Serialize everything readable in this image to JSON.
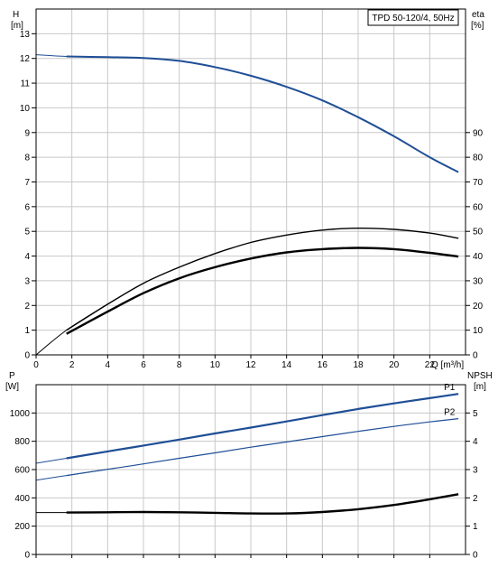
{
  "chart_data": [
    {
      "type": "line",
      "title": "TPD 50-120/4, 50Hz",
      "xlabel": "Q [m³/h]",
      "ylabel_left_name": "H",
      "ylabel_left_unit": "[m]",
      "ylabel_right_name": "eta",
      "ylabel_right_unit": "[%]",
      "xlim": [
        0,
        24
      ],
      "ylim_left": [
        0,
        14
      ],
      "ylim_right": [
        0,
        140
      ],
      "x_ticks": [
        0,
        2,
        4,
        6,
        8,
        10,
        12,
        14,
        16,
        18,
        20,
        22
      ],
      "y_left_ticks": [
        0,
        1,
        2,
        3,
        4,
        5,
        6,
        7,
        8,
        9,
        10,
        11,
        12,
        13
      ],
      "y_right_ticks": [
        0,
        10,
        20,
        30,
        40,
        50,
        60,
        70,
        80,
        90
      ],
      "grid": true,
      "series": [
        {
          "axis": "left",
          "color": "#1f4e96",
          "x": [
            0,
            1.7,
            4,
            6,
            8,
            10,
            12,
            14,
            16,
            18,
            20,
            22,
            23.6
          ],
          "y": [
            12.15,
            12.08,
            12.05,
            12.02,
            11.9,
            11.65,
            11.3,
            10.85,
            10.3,
            9.62,
            8.85,
            8.0,
            7.4
          ]
        },
        {
          "axis": "right",
          "color": "#000000",
          "x": [
            0,
            1.7,
            4,
            6,
            8,
            10,
            12,
            14,
            16,
            18,
            20,
            22,
            23.6
          ],
          "y": [
            0,
            10,
            20.5,
            29,
            35.5,
            41,
            45.5,
            48.5,
            50.5,
            51.3,
            50.8,
            49.3,
            47.2
          ]
        },
        {
          "axis": "right",
          "color": "#000000",
          "x": [
            1.7,
            4,
            6,
            8,
            10,
            12,
            14,
            16,
            18,
            20,
            22,
            23.6
          ],
          "y": [
            8.5,
            17.5,
            25,
            31,
            35.5,
            39,
            41.5,
            42.8,
            43.3,
            42.8,
            41.3,
            39.8
          ]
        }
      ]
    },
    {
      "type": "line",
      "xlabel": "",
      "ylabel_left_name": "P",
      "ylabel_left_unit": "[W]",
      "ylabel_right_name": "NPSH",
      "ylabel_right_unit": "[m]",
      "xlim": [
        0,
        24
      ],
      "ylim_left": [
        0,
        1200
      ],
      "ylim_right": [
        0,
        6
      ],
      "y_left_ticks": [
        0,
        200,
        400,
        600,
        800,
        1000
      ],
      "y_right_ticks": [
        0,
        1,
        2,
        3,
        4,
        5
      ],
      "grid": true,
      "series": [
        {
          "name": "P1",
          "axis": "left",
          "color": "#1f4e96",
          "x": [
            0,
            1.7,
            4,
            6,
            8,
            10,
            12,
            14,
            16,
            18,
            20,
            22,
            23.6
          ],
          "y": [
            645,
            680,
            728,
            770,
            812,
            855,
            897,
            940,
            985,
            1028,
            1068,
            1105,
            1135
          ]
        },
        {
          "name": "P2",
          "axis": "left",
          "color": "#1f4e96",
          "x": [
            0,
            1.7,
            4,
            6,
            8,
            10,
            12,
            14,
            16,
            18,
            20,
            22,
            23.6
          ],
          "y": [
            525,
            558,
            602,
            640,
            680,
            718,
            758,
            795,
            833,
            870,
            905,
            937,
            960
          ]
        },
        {
          "axis": "right",
          "color": "#000000",
          "x": [
            0,
            1.7,
            4,
            6,
            8,
            10,
            12,
            14,
            16,
            18,
            20,
            22,
            23.6
          ],
          "y": [
            1.48,
            1.48,
            1.49,
            1.5,
            1.49,
            1.47,
            1.45,
            1.45,
            1.5,
            1.6,
            1.75,
            1.95,
            2.13
          ]
        }
      ]
    }
  ]
}
